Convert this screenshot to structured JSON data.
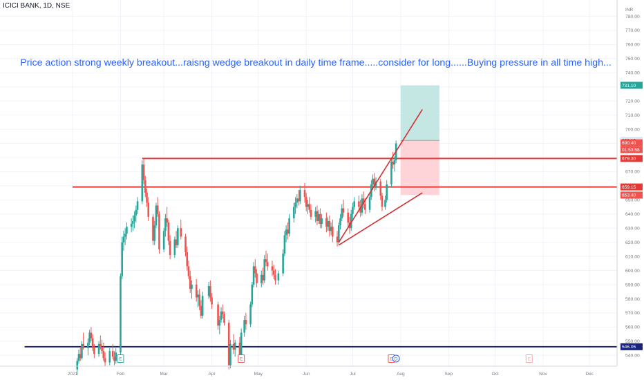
{
  "header": {
    "symbol": "ICICI BANK, 1D, NSE",
    "currency": "INR"
  },
  "annotation_text": "Price action strong weekly breakout...raisng wedge breakout in daily time frame.....consider for long......Buying pressure in all time high...",
  "colors": {
    "up": "#26a69a",
    "down": "#ef5350",
    "level_line": "#e53935",
    "trend_line": "#d32f2f",
    "support_line": "#1a237e",
    "target_zone": "#b2dfdb",
    "stop_zone": "#ffcdd2",
    "text_blue": "#2962ff"
  },
  "chart_data": {
    "type": "candlestick",
    "x_tick_labels": [
      "Dec",
      "2021",
      "Feb",
      "Mar",
      "Apr",
      "May",
      "Jun",
      "Jul",
      "Aug",
      "Sep",
      "Oct",
      "Nov",
      "Dec"
    ],
    "x_tick_days": [
      -61,
      0,
      31,
      59,
      90,
      120,
      151,
      181,
      212,
      243,
      273,
      304,
      334
    ],
    "y_ticks": [
      540,
      550,
      560,
      570,
      580,
      590,
      600,
      610,
      620,
      630,
      640,
      650,
      660,
      670,
      680,
      690,
      700,
      710,
      720,
      730,
      740,
      750,
      760,
      770,
      780
    ],
    "ylim": [
      535,
      795
    ],
    "grid": true,
    "horizontal_levels": [
      {
        "value": 679.3,
        "label": "679.30",
        "from": "2021-02-15"
      },
      {
        "value": 659.15,
        "label": "659.15",
        "from": "2021-01-01"
      },
      {
        "value": 546.05,
        "label": "546.05",
        "from": "2020-12-01"
      }
    ],
    "price_labels": [
      {
        "value": 731.1,
        "label": "731.10"
      },
      {
        "value": 692.1,
        "label": "692.10"
      },
      {
        "value": 690.4,
        "label": "690.40"
      },
      {
        "value": 688.0,
        "label": "01:53:58"
      },
      {
        "value": 653.4,
        "label": "653.40"
      }
    ],
    "wedge_lines": [
      {
        "from": [
          "2021-06-22",
          620
        ],
        "to": [
          "2021-08-15",
          714
        ]
      },
      {
        "from": [
          "2021-06-22",
          618
        ],
        "to": [
          "2021-08-15",
          655
        ]
      }
    ],
    "position_box": {
      "start": "2021-08-01",
      "end": "2021-08-26",
      "entry": 692.1,
      "target": 731.1,
      "stop": 653.4
    },
    "event_markers": [
      {
        "date": "2021-02-01",
        "letter": "E"
      },
      {
        "date": "2021-04-20",
        "letter": "E"
      },
      {
        "date": "2021-07-26",
        "letter": "E"
      },
      {
        "date": "2021-07-29",
        "letter": "D"
      },
      {
        "date": "2021-10-23",
        "letter": "E"
      }
    ],
    "candles": [
      [
        "2021-01-04",
        530,
        538,
        526,
        536
      ],
      [
        "2021-01-05",
        536,
        544,
        534,
        541
      ],
      [
        "2021-01-06",
        541,
        546,
        536,
        538
      ],
      [
        "2021-01-07",
        538,
        550,
        537,
        548
      ],
      [
        "2021-01-08",
        548,
        556,
        544,
        545
      ],
      [
        "2021-01-11",
        545,
        552,
        540,
        549
      ],
      [
        "2021-01-12",
        549,
        558,
        547,
        556
      ],
      [
        "2021-01-13",
        556,
        560,
        550,
        552
      ],
      [
        "2021-01-14",
        552,
        555,
        543,
        545
      ],
      [
        "2021-01-15",
        545,
        548,
        538,
        541
      ],
      [
        "2021-01-18",
        541,
        550,
        539,
        548
      ],
      [
        "2021-01-19",
        548,
        554,
        544,
        546
      ],
      [
        "2021-01-20",
        546,
        551,
        541,
        543
      ],
      [
        "2021-01-21",
        543,
        549,
        536,
        538
      ],
      [
        "2021-01-22",
        538,
        542,
        532,
        535
      ],
      [
        "2021-01-25",
        535,
        545,
        533,
        543
      ],
      [
        "2021-01-27",
        543,
        548,
        537,
        539
      ],
      [
        "2021-01-28",
        539,
        543,
        533,
        536
      ],
      [
        "2021-01-29",
        536,
        545,
        534,
        542
      ],
      [
        "2021-02-01",
        542,
        598,
        540,
        596
      ],
      [
        "2021-02-02",
        596,
        624,
        594,
        620
      ],
      [
        "2021-02-03",
        620,
        628,
        614,
        624
      ],
      [
        "2021-02-04",
        624,
        630,
        618,
        626
      ],
      [
        "2021-02-05",
        626,
        634,
        622,
        631
      ],
      [
        "2021-02-08",
        631,
        637,
        627,
        633
      ],
      [
        "2021-02-09",
        633,
        639,
        628,
        635
      ],
      [
        "2021-02-10",
        635,
        642,
        630,
        639
      ],
      [
        "2021-02-11",
        639,
        646,
        634,
        643
      ],
      [
        "2021-02-12",
        643,
        652,
        640,
        649
      ],
      [
        "2021-02-15",
        649,
        678,
        647,
        675
      ],
      [
        "2021-02-16",
        675,
        679,
        661,
        664
      ],
      [
        "2021-02-17",
        664,
        667,
        652,
        655
      ],
      [
        "2021-02-18",
        655,
        658,
        645,
        648
      ],
      [
        "2021-02-19",
        648,
        652,
        635,
        638
      ],
      [
        "2021-02-22",
        638,
        640,
        618,
        621
      ],
      [
        "2021-02-23",
        621,
        635,
        618,
        632
      ],
      [
        "2021-02-24",
        632,
        648,
        630,
        646
      ],
      [
        "2021-02-25",
        646,
        652,
        638,
        640
      ],
      [
        "2021-02-26",
        640,
        642,
        612,
        615
      ],
      [
        "2021-03-01",
        615,
        630,
        613,
        628
      ],
      [
        "2021-03-02",
        628,
        640,
        624,
        637
      ],
      [
        "2021-03-03",
        637,
        645,
        631,
        634
      ],
      [
        "2021-03-04",
        634,
        636,
        618,
        621
      ],
      [
        "2021-03-05",
        621,
        625,
        608,
        611
      ],
      [
        "2021-03-08",
        611,
        624,
        609,
        622
      ],
      [
        "2021-03-09",
        622,
        628,
        616,
        618
      ],
      [
        "2021-03-10",
        618,
        632,
        616,
        630
      ],
      [
        "2021-03-12",
        630,
        636,
        622,
        624
      ],
      [
        "2021-03-15",
        624,
        626,
        610,
        613
      ],
      [
        "2021-03-16",
        613,
        617,
        600,
        603
      ],
      [
        "2021-03-17",
        603,
        607,
        594,
        596
      ],
      [
        "2021-03-18",
        596,
        600,
        584,
        587
      ],
      [
        "2021-03-19",
        587,
        593,
        580,
        590
      ],
      [
        "2021-03-22",
        590,
        594,
        578,
        581
      ],
      [
        "2021-03-23",
        581,
        586,
        574,
        583
      ],
      [
        "2021-03-24",
        583,
        587,
        572,
        575
      ],
      [
        "2021-03-25",
        575,
        579,
        566,
        568
      ],
      [
        "2021-03-26",
        568,
        585,
        566,
        582
      ],
      [
        "2021-03-30",
        582,
        592,
        580,
        589
      ],
      [
        "2021-03-31",
        589,
        593,
        578,
        581
      ],
      [
        "2021-04-01",
        581,
        584,
        573,
        576
      ],
      [
        "2021-04-05",
        576,
        578,
        558,
        561
      ],
      [
        "2021-04-06",
        561,
        568,
        555,
        565
      ],
      [
        "2021-04-07",
        565,
        574,
        563,
        571
      ],
      [
        "2021-04-08",
        571,
        576,
        566,
        569
      ],
      [
        "2021-04-09",
        569,
        571,
        561,
        563
      ],
      [
        "2021-04-12",
        563,
        565,
        530,
        533
      ],
      [
        "2021-04-13",
        533,
        551,
        531,
        548
      ],
      [
        "2021-04-15",
        548,
        555,
        541,
        544
      ],
      [
        "2021-04-16",
        544,
        551,
        539,
        549
      ],
      [
        "2021-04-19",
        549,
        553,
        536,
        540
      ],
      [
        "2021-04-20",
        540,
        559,
        538,
        556
      ],
      [
        "2021-04-22",
        556,
        568,
        553,
        565
      ],
      [
        "2021-04-23",
        565,
        570,
        558,
        562
      ],
      [
        "2021-04-26",
        562,
        578,
        560,
        576
      ],
      [
        "2021-04-27",
        576,
        592,
        574,
        590
      ],
      [
        "2021-04-28",
        590,
        606,
        588,
        603
      ],
      [
        "2021-04-29",
        603,
        608,
        595,
        598
      ],
      [
        "2021-04-30",
        598,
        601,
        588,
        591
      ],
      [
        "2021-05-03",
        591,
        600,
        588,
        597
      ],
      [
        "2021-05-04",
        597,
        602,
        590,
        593
      ],
      [
        "2021-05-05",
        593,
        611,
        591,
        608
      ],
      [
        "2021-05-06",
        608,
        614,
        603,
        606
      ],
      [
        "2021-05-07",
        606,
        612,
        600,
        603
      ],
      [
        "2021-05-10",
        603,
        607,
        596,
        600
      ],
      [
        "2021-05-11",
        600,
        604,
        594,
        597
      ],
      [
        "2021-05-12",
        597,
        601,
        590,
        593
      ],
      [
        "2021-05-14",
        593,
        600,
        590,
        598
      ],
      [
        "2021-05-17",
        598,
        615,
        596,
        612
      ],
      [
        "2021-05-18",
        612,
        628,
        610,
        625
      ],
      [
        "2021-05-19",
        625,
        632,
        620,
        629
      ],
      [
        "2021-05-20",
        629,
        634,
        622,
        626
      ],
      [
        "2021-05-21",
        626,
        640,
        624,
        637
      ],
      [
        "2021-05-24",
        637,
        648,
        634,
        645
      ],
      [
        "2021-05-25",
        645,
        652,
        640,
        648
      ],
      [
        "2021-05-26",
        648,
        654,
        644,
        651
      ],
      [
        "2021-05-27",
        651,
        657,
        646,
        649
      ],
      [
        "2021-05-28",
        649,
        660,
        647,
        657
      ],
      [
        "2021-05-31",
        657,
        662,
        648,
        652
      ],
      [
        "2021-06-01",
        652,
        655,
        642,
        645
      ],
      [
        "2021-06-02",
        645,
        650,
        640,
        647
      ],
      [
        "2021-06-03",
        647,
        652,
        641,
        643
      ],
      [
        "2021-06-04",
        643,
        647,
        636,
        638
      ],
      [
        "2021-06-07",
        638,
        645,
        634,
        642
      ],
      [
        "2021-06-08",
        642,
        646,
        632,
        635
      ],
      [
        "2021-06-09",
        635,
        643,
        633,
        640
      ],
      [
        "2021-06-10",
        640,
        644,
        630,
        633
      ],
      [
        "2021-06-11",
        633,
        640,
        630,
        637
      ],
      [
        "2021-06-14",
        637,
        641,
        627,
        631
      ],
      [
        "2021-06-15",
        631,
        638,
        628,
        635
      ],
      [
        "2021-06-16",
        635,
        639,
        624,
        628
      ],
      [
        "2021-06-17",
        628,
        634,
        625,
        631
      ],
      [
        "2021-06-18",
        631,
        636,
        620,
        624
      ],
      [
        "2021-06-21",
        624,
        628,
        617,
        620
      ],
      [
        "2021-06-22",
        620,
        634,
        618,
        632
      ],
      [
        "2021-06-23",
        632,
        640,
        629,
        637
      ],
      [
        "2021-06-24",
        637,
        647,
        635,
        644
      ],
      [
        "2021-06-25",
        644,
        650,
        638,
        641
      ],
      [
        "2021-06-28",
        641,
        644,
        630,
        634
      ],
      [
        "2021-06-29",
        634,
        638,
        626,
        630
      ],
      [
        "2021-06-30",
        630,
        643,
        628,
        640
      ],
      [
        "2021-07-01",
        640,
        648,
        636,
        645
      ],
      [
        "2021-07-02",
        645,
        652,
        643,
        649
      ],
      [
        "2021-07-05",
        649,
        653,
        642,
        645
      ],
      [
        "2021-07-06",
        645,
        650,
        638,
        641
      ],
      [
        "2021-07-07",
        641,
        654,
        639,
        651
      ],
      [
        "2021-07-08",
        651,
        656,
        644,
        647
      ],
      [
        "2021-07-09",
        647,
        651,
        640,
        643
      ],
      [
        "2021-07-12",
        643,
        655,
        641,
        652
      ],
      [
        "2021-07-13",
        652,
        664,
        650,
        661
      ],
      [
        "2021-07-14",
        661,
        668,
        657,
        665
      ],
      [
        "2021-07-15",
        665,
        669,
        656,
        659
      ],
      [
        "2021-07-16",
        659,
        666,
        657,
        663
      ],
      [
        "2021-07-19",
        663,
        665,
        650,
        653
      ],
      [
        "2021-07-20",
        653,
        655,
        642,
        645
      ],
      [
        "2021-07-22",
        645,
        653,
        643,
        650
      ],
      [
        "2021-07-23",
        650,
        664,
        648,
        661
      ],
      [
        "2021-07-26",
        661,
        680,
        659,
        677
      ],
      [
        "2021-07-27",
        677,
        684,
        672,
        675
      ],
      [
        "2021-07-28",
        675,
        681,
        670,
        678
      ],
      [
        "2021-07-29",
        678,
        692,
        676,
        690
      ]
    ]
  }
}
